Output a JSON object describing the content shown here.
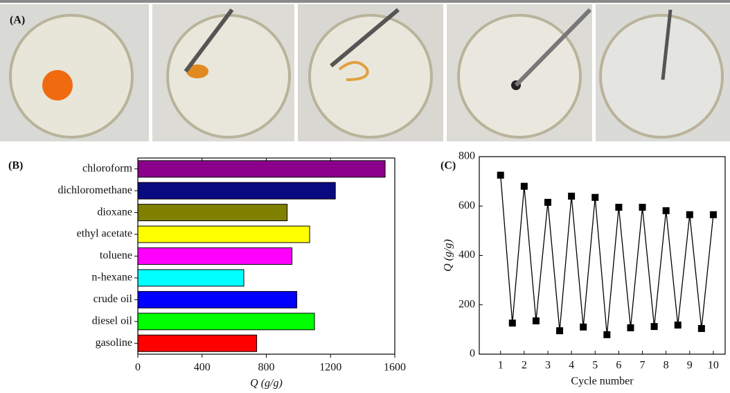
{
  "photo_panel": {
    "label": "(A)"
  },
  "chart_data": [
    {
      "type": "bar",
      "orientation": "horizontal",
      "panel_label": "(B)",
      "x_label": "Q (g/g)",
      "categories": [
        "chloroform",
        "dichloromethane",
        "dioxane",
        "ethyl acetate",
        "toluene",
        "n-hexane",
        "crude oil",
        "diesel oil",
        "gasoline"
      ],
      "values": [
        1540,
        1230,
        930,
        1070,
        960,
        660,
        990,
        1100,
        740
      ],
      "colors": [
        "#8b008b",
        "#0a0a80",
        "#808000",
        "#ffff00",
        "#ff00ff",
        "#00ffff",
        "#0000ff",
        "#00ff00",
        "#ff0000"
      ],
      "xlim": [
        0,
        1600
      ],
      "xticks": [
        0,
        400,
        800,
        1200,
        1600
      ]
    },
    {
      "type": "line",
      "panel_label": "(C)",
      "x_label": "Cycle number",
      "y_label": "Q (g/g)",
      "x": [
        1,
        1.5,
        2,
        2.5,
        3,
        3.5,
        4,
        4.5,
        5,
        5.5,
        6,
        6.5,
        7,
        7.5,
        8,
        8.5,
        9,
        9.5,
        10
      ],
      "values": [
        725,
        126,
        680,
        135,
        615,
        95,
        640,
        110,
        635,
        79,
        595,
        107,
        595,
        112,
        581,
        118,
        565,
        104,
        565
      ],
      "color": "#000000",
      "xlim": [
        0.1,
        10.5
      ],
      "xticks": [
        1,
        2,
        3,
        4,
        5,
        6,
        7,
        8,
        9,
        10
      ],
      "ylim": [
        0,
        800
      ],
      "yticks": [
        0,
        200,
        400,
        600,
        800
      ]
    }
  ]
}
